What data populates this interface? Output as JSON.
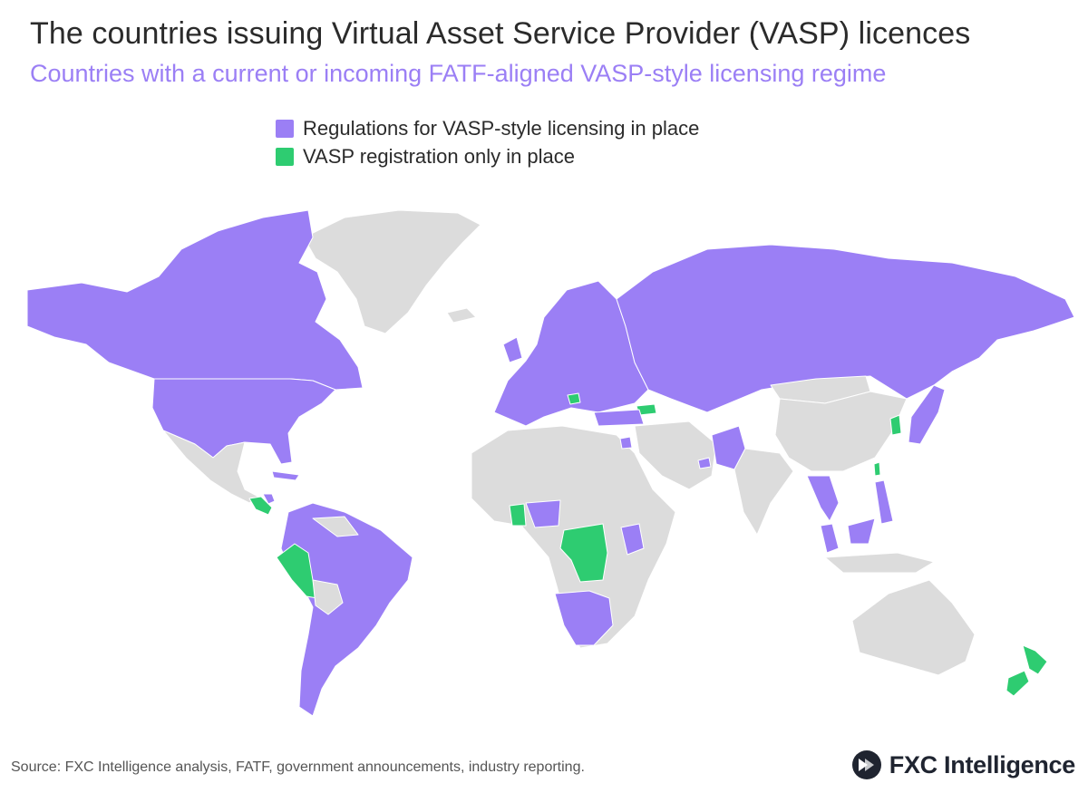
{
  "header": {
    "title": "The countries issuing Virtual Asset Service Provider (VASP) licences",
    "subtitle": "Countries with a current or incoming FATF-aligned VASP-style licensing regime"
  },
  "legend": {
    "items": [
      {
        "label": "Regulations for VASP-style licensing in place",
        "color": "#9b7ff5"
      },
      {
        "label": "VASP registration only in place",
        "color": "#2ecc71"
      }
    ]
  },
  "colors": {
    "licensing": "#9b7ff5",
    "registration": "#2ecc71",
    "no_regime": "#dcdcdc",
    "subtitle": "#9b7ff5"
  },
  "footer": {
    "source": "Source: FXC Intelligence analysis, FATF, government announcements, industry reporting.",
    "brand": "FXC Intelligence"
  }
}
